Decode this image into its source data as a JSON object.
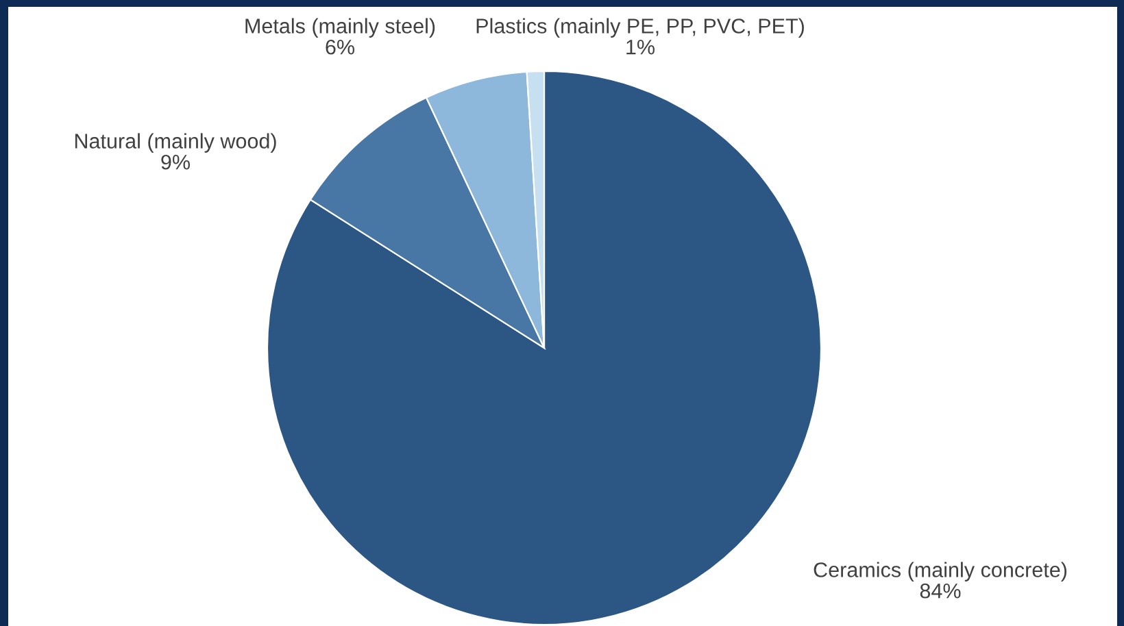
{
  "chart_data": {
    "type": "pie",
    "categories": [
      "Ceramics (mainly concrete)",
      "Natural (mainly wood)",
      "Metals (mainly steel)",
      "Plastics (mainly PE, PP, PVC, PET)"
    ],
    "values": [
      84,
      9,
      6,
      1
    ],
    "value_labels": [
      "84%",
      "9%",
      "6%",
      "1%"
    ],
    "colors": [
      "#2c5784",
      "#4877a6",
      "#8db8dc",
      "#c6dff1"
    ]
  }
}
